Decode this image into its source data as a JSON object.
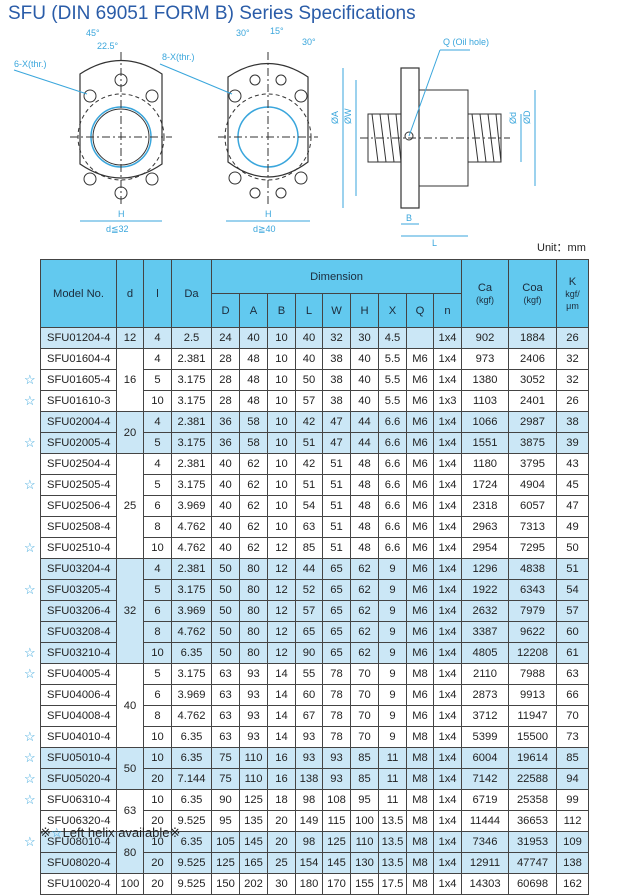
{
  "title": "SFU (DIN 69051 FORM B) Series Specifications",
  "drawings": {
    "angle45": "45°",
    "angle22": "22.5°",
    "holes6": "6-X(thr.)",
    "h1": "H",
    "cond1": "d≦32",
    "angle30a": "30°",
    "angle15": "15°",
    "angle30b": "30°",
    "holes8": "8-X(thr.)",
    "h2": "H",
    "cond2": "d≧40",
    "oil": "Q (Oil hole)",
    "dA": "ØA",
    "dW": "ØW",
    "dd": "Ød",
    "dD": "ØD",
    "B": "B",
    "L": "L"
  },
  "unit": "Unit：mm",
  "table": {
    "headers": {
      "model": "Model No.",
      "d": "d",
      "l": "l",
      "Da": "Da",
      "dimension": "Dimension",
      "dims": [
        "D",
        "A",
        "B",
        "L",
        "W",
        "H",
        "X",
        "Q",
        "n"
      ],
      "Ca": "Ca",
      "Ca_unit": "(kgf)",
      "Coa": "Coa",
      "Coa_unit": "(kgf)",
      "K": "K",
      "K_unit1": "kgf/",
      "K_unit2": "μm"
    },
    "groups": [
      {
        "d": "12",
        "rows": [
          {
            "star": false,
            "v": [
              "SFU01204-4",
              "4",
              "2.5",
              "24",
              "40",
              "10",
              "40",
              "32",
              "30",
              "4.5",
              "",
              "1x4",
              "902",
              "1884",
              "26"
            ]
          }
        ]
      },
      {
        "d": "16",
        "rows": [
          {
            "star": false,
            "v": [
              "SFU01604-4",
              "4",
              "2.381",
              "28",
              "48",
              "10",
              "40",
              "38",
              "40",
              "5.5",
              "M6",
              "1x4",
              "973",
              "2406",
              "32"
            ]
          },
          {
            "star": true,
            "v": [
              "SFU01605-4",
              "5",
              "3.175",
              "28",
              "48",
              "10",
              "50",
              "38",
              "40",
              "5.5",
              "M6",
              "1x4",
              "1380",
              "3052",
              "32"
            ]
          },
          {
            "star": true,
            "v": [
              "SFU01610-3",
              "10",
              "3.175",
              "28",
              "48",
              "10",
              "57",
              "38",
              "40",
              "5.5",
              "M6",
              "1x3",
              "1103",
              "2401",
              "26"
            ]
          }
        ]
      },
      {
        "d": "20",
        "rows": [
          {
            "star": false,
            "v": [
              "SFU02004-4",
              "4",
              "2.381",
              "36",
              "58",
              "10",
              "42",
              "47",
              "44",
              "6.6",
              "M6",
              "1x4",
              "1066",
              "2987",
              "38"
            ]
          },
          {
            "star": true,
            "v": [
              "SFU02005-4",
              "5",
              "3.175",
              "36",
              "58",
              "10",
              "51",
              "47",
              "44",
              "6.6",
              "M6",
              "1x4",
              "1551",
              "3875",
              "39"
            ]
          }
        ]
      },
      {
        "d": "25",
        "rows": [
          {
            "star": false,
            "v": [
              "SFU02504-4",
              "4",
              "2.381",
              "40",
              "62",
              "10",
              "42",
              "51",
              "48",
              "6.6",
              "M6",
              "1x4",
              "1180",
              "3795",
              "43"
            ]
          },
          {
            "star": true,
            "v": [
              "SFU02505-4",
              "5",
              "3.175",
              "40",
              "62",
              "10",
              "51",
              "51",
              "48",
              "6.6",
              "M6",
              "1x4",
              "1724",
              "4904",
              "45"
            ]
          },
          {
            "star": false,
            "v": [
              "SFU02506-4",
              "6",
              "3.969",
              "40",
              "62",
              "10",
              "54",
              "51",
              "48",
              "6.6",
              "M6",
              "1x4",
              "2318",
              "6057",
              "47"
            ]
          },
          {
            "star": false,
            "v": [
              "SFU02508-4",
              "8",
              "4.762",
              "40",
              "62",
              "10",
              "63",
              "51",
              "48",
              "6.6",
              "M6",
              "1x4",
              "2963",
              "7313",
              "49"
            ]
          },
          {
            "star": true,
            "v": [
              "SFU02510-4",
              "10",
              "4.762",
              "40",
              "62",
              "12",
              "85",
              "51",
              "48",
              "6.6",
              "M6",
              "1x4",
              "2954",
              "7295",
              "50"
            ]
          }
        ]
      },
      {
        "d": "32",
        "rows": [
          {
            "star": false,
            "v": [
              "SFU03204-4",
              "4",
              "2.381",
              "50",
              "80",
              "12",
              "44",
              "65",
              "62",
              "9",
              "M6",
              "1x4",
              "1296",
              "4838",
              "51"
            ]
          },
          {
            "star": true,
            "v": [
              "SFU03205-4",
              "5",
              "3.175",
              "50",
              "80",
              "12",
              "52",
              "65",
              "62",
              "9",
              "M6",
              "1x4",
              "1922",
              "6343",
              "54"
            ]
          },
          {
            "star": false,
            "v": [
              "SFU03206-4",
              "6",
              "3.969",
              "50",
              "80",
              "12",
              "57",
              "65",
              "62",
              "9",
              "M6",
              "1x4",
              "2632",
              "7979",
              "57"
            ]
          },
          {
            "star": false,
            "v": [
              "SFU03208-4",
              "8",
              "4.762",
              "50",
              "80",
              "12",
              "65",
              "65",
              "62",
              "9",
              "M6",
              "1x4",
              "3387",
              "9622",
              "60"
            ]
          },
          {
            "star": true,
            "v": [
              "SFU03210-4",
              "10",
              "6.35",
              "50",
              "80",
              "12",
              "90",
              "65",
              "62",
              "9",
              "M6",
              "1x4",
              "4805",
              "12208",
              "61"
            ]
          }
        ]
      },
      {
        "d": "40",
        "rows": [
          {
            "star": true,
            "v": [
              "SFU04005-4",
              "5",
              "3.175",
              "63",
              "93",
              "14",
              "55",
              "78",
              "70",
              "9",
              "M8",
              "1x4",
              "2110",
              "7988",
              "63"
            ]
          },
          {
            "star": false,
            "v": [
              "SFU04006-4",
              "6",
              "3.969",
              "63",
              "93",
              "14",
              "60",
              "78",
              "70",
              "9",
              "M6",
              "1x4",
              "2873",
              "9913",
              "66"
            ]
          },
          {
            "star": false,
            "v": [
              "SFU04008-4",
              "8",
              "4.762",
              "63",
              "93",
              "14",
              "67",
              "78",
              "70",
              "9",
              "M6",
              "1x4",
              "3712",
              "11947",
              "70"
            ]
          },
          {
            "star": true,
            "v": [
              "SFU04010-4",
              "10",
              "6.35",
              "63",
              "93",
              "14",
              "93",
              "78",
              "70",
              "9",
              "M8",
              "1x4",
              "5399",
              "15500",
              "73"
            ]
          }
        ]
      },
      {
        "d": "50",
        "rows": [
          {
            "star": true,
            "v": [
              "SFU05010-4",
              "10",
              "6.35",
              "75",
              "110",
              "16",
              "93",
              "93",
              "85",
              "11",
              "M8",
              "1x4",
              "6004",
              "19614",
              "85"
            ]
          },
          {
            "star": true,
            "v": [
              "SFU05020-4",
              "20",
              "7.144",
              "75",
              "110",
              "16",
              "138",
              "93",
              "85",
              "11",
              "M8",
              "1x4",
              "7142",
              "22588",
              "94"
            ]
          }
        ]
      },
      {
        "d": "63",
        "rows": [
          {
            "star": true,
            "v": [
              "SFU06310-4",
              "10",
              "6.35",
              "90",
              "125",
              "18",
              "98",
              "108",
              "95",
              "11",
              "M8",
              "1x4",
              "6719",
              "25358",
              "99"
            ]
          },
          {
            "star": false,
            "v": [
              "SFU06320-4",
              "20",
              "9.525",
              "95",
              "135",
              "20",
              "149",
              "115",
              "100",
              "13.5",
              "M8",
              "1x4",
              "11444",
              "36653",
              "112"
            ]
          }
        ]
      },
      {
        "d": "80",
        "rows": [
          {
            "star": true,
            "v": [
              "SFU08010-4",
              "10",
              "6.35",
              "105",
              "145",
              "20",
              "98",
              "125",
              "110",
              "13.5",
              "M8",
              "1x4",
              "7346",
              "31953",
              "109"
            ]
          },
          {
            "star": false,
            "v": [
              "SFU08020-4",
              "20",
              "9.525",
              "125",
              "165",
              "25",
              "154",
              "145",
              "130",
              "13.5",
              "M8",
              "1x4",
              "12911",
              "47747",
              "138"
            ]
          }
        ]
      },
      {
        "d": "100",
        "rows": [
          {
            "star": false,
            "v": [
              "SFU10020-4",
              "20",
              "9.525",
              "150",
              "202",
              "30",
              "180",
              "170",
              "155",
              "17.5",
              "M8",
              "1x4",
              "14303",
              "60698",
              "162"
            ]
          }
        ]
      }
    ]
  },
  "footnote": {
    "mark": "※",
    "star": "☆",
    "text": "Left helix available",
    "mark2": "※"
  },
  "colors": {
    "title": "#2a5ca8",
    "header": "#62c9ef",
    "shade": "#cbe7f6",
    "star": "#3aa6dc"
  }
}
